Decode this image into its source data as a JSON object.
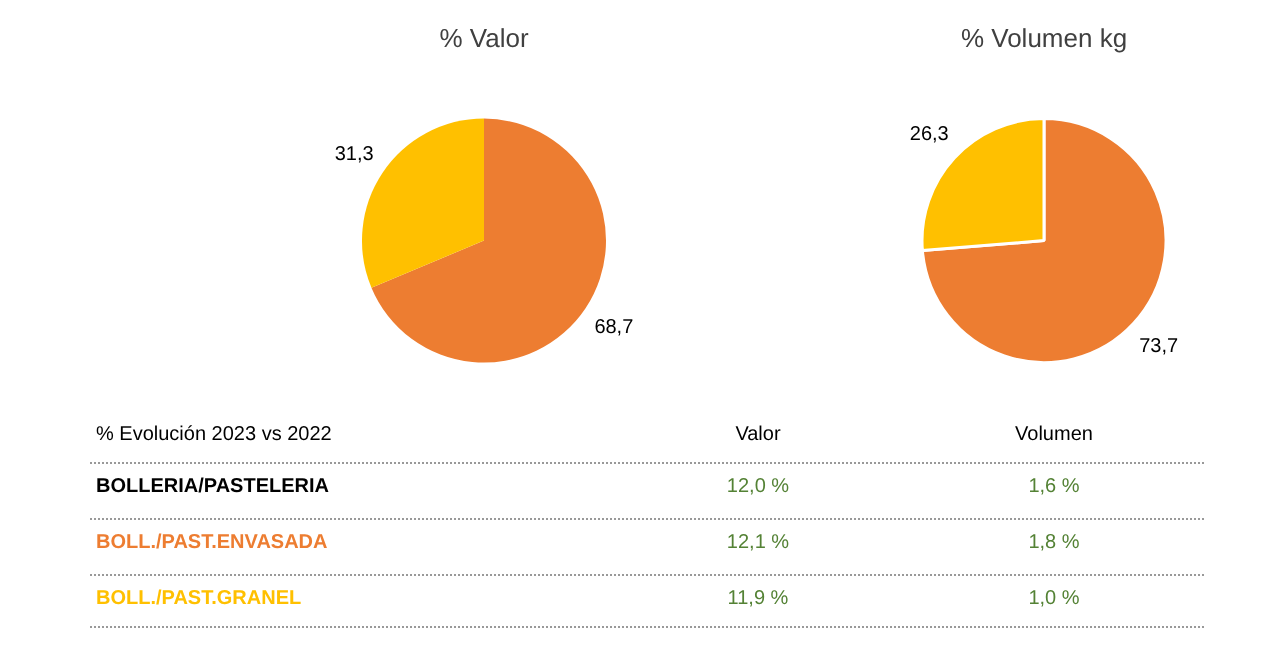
{
  "chart_data": [
    {
      "type": "pie",
      "title": "% Valor",
      "categories": [
        null,
        null
      ],
      "values": [
        68.7,
        31.3
      ],
      "colors": [
        "#ed7d31",
        "#ffc000"
      ],
      "value_labels": [
        "68,7",
        "31,3"
      ]
    },
    {
      "type": "pie",
      "title": "% Volumen kg",
      "categories": [
        null,
        null
      ],
      "values": [
        73.7,
        26.3
      ],
      "colors": [
        "#ed7d31",
        "#ffc000"
      ],
      "value_labels": [
        "73,7",
        "26,3"
      ]
    },
    {
      "type": "other",
      "annotations": [
        "% Evolución 2023 vs 2022",
        "Valor",
        "Volumen",
        "BOLLERIA/PASTELERIA",
        "12,0 %",
        "1,6 %",
        "BOLL./PAST.ENVASADA",
        "12,1 %",
        "1,8 %",
        "BOLL./PAST.GRANEL",
        "11,9 %",
        "1,0 %"
      ]
    }
  ]
}
